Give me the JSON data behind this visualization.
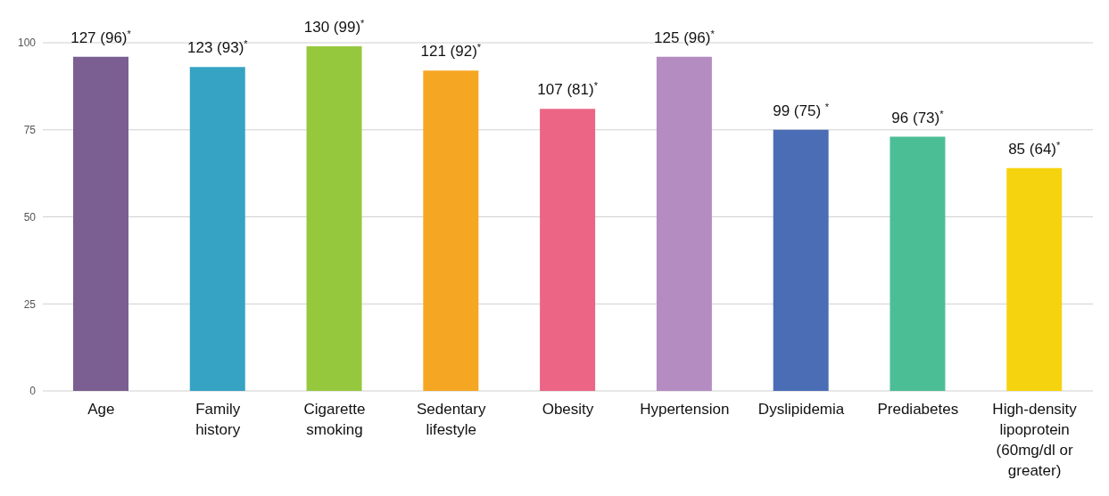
{
  "chart_data": {
    "type": "bar",
    "categories": [
      "Age",
      "Family history",
      "Cigarette smoking",
      "Sedentary lifestyle",
      "Obesity",
      "Hypertension",
      "Dyslipidemia",
      "Prediabetes",
      "High-density lipoprotein (60mg/dl or greater)"
    ],
    "values": [
      96,
      93,
      99,
      92,
      81,
      96,
      75,
      73,
      64
    ],
    "colors": [
      "#7b5e92",
      "#37a3c4",
      "#96c83e",
      "#f5a623",
      "#ec6584",
      "#b48cc2",
      "#4a6db5",
      "#4cbe96",
      "#f6d30f"
    ],
    "value_labels": [
      "127 (96)$^{*}$",
      "123 (93)$^{*}$",
      "130 (99)$^{*}$",
      "121 (92)$^{*}$",
      "107 (81)$^{*}$",
      "125 (96)$^{*}$",
      "99 (75) $^{*}$",
      "96 (73)$^{*}$",
      "85 (64)$^{*}$"
    ],
    "ylim": [
      0,
      100
    ],
    "yticks": [
      0,
      25,
      50,
      75,
      100
    ],
    "grid": "y"
  }
}
